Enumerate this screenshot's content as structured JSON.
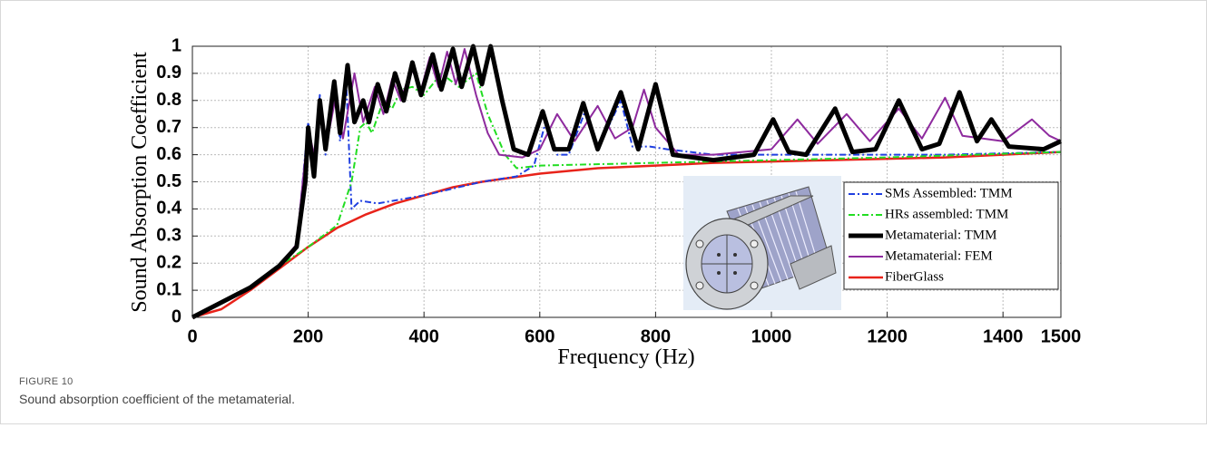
{
  "chart_data": {
    "type": "line",
    "x_label": "Frequency (Hz)",
    "y_label": "Sound Absorption Coefficient",
    "xlim": [
      0,
      1500
    ],
    "ylim": [
      0,
      1
    ],
    "xticks": [
      0,
      200,
      400,
      600,
      800,
      1000,
      1200,
      1400,
      1500
    ],
    "yticks": [
      0,
      0.1,
      0.2,
      0.3,
      0.4,
      0.5,
      0.6,
      0.7,
      0.8,
      0.9,
      1
    ],
    "grid": true,
    "legend_position": "lower right",
    "series": [
      {
        "name": "SMs Assembled: TMM",
        "color": "#1f3fe0",
        "style": "dashdot",
        "line_width": 2,
        "x": [
          0,
          100,
          150,
          180,
          200,
          210,
          220,
          230,
          245,
          255,
          265,
          275,
          290,
          320,
          400,
          500,
          560,
          590,
          610,
          630,
          650,
          680,
          700,
          740,
          760,
          790,
          820,
          900,
          1000,
          1100,
          1200,
          1300,
          1500
        ],
        "values": [
          0,
          0.11,
          0.19,
          0.26,
          0.72,
          0.55,
          0.82,
          0.6,
          0.85,
          0.65,
          0.9,
          0.4,
          0.43,
          0.42,
          0.45,
          0.5,
          0.52,
          0.56,
          0.72,
          0.6,
          0.6,
          0.77,
          0.62,
          0.8,
          0.63,
          0.63,
          0.62,
          0.6,
          0.6,
          0.6,
          0.6,
          0.6,
          0.61
        ]
      },
      {
        "name": "HRs assembled: TMM",
        "color": "#22dd22",
        "style": "dashdot",
        "line_width": 2,
        "x": [
          0,
          100,
          150,
          200,
          250,
          275,
          290,
          300,
          310,
          330,
          345,
          360,
          380,
          400,
          430,
          460,
          490,
          510,
          540,
          560,
          600,
          800,
          1000,
          1200,
          1500
        ],
        "values": [
          0,
          0.11,
          0.19,
          0.26,
          0.34,
          0.5,
          0.7,
          0.72,
          0.68,
          0.8,
          0.77,
          0.84,
          0.85,
          0.82,
          0.9,
          0.85,
          0.9,
          0.75,
          0.6,
          0.55,
          0.56,
          0.57,
          0.58,
          0.59,
          0.61
        ]
      },
      {
        "name": "Metamaterial: TMM",
        "color": "#000000",
        "style": "solid",
        "line_width": 5,
        "x": [
          0,
          100,
          150,
          180,
          195,
          200,
          210,
          220,
          230,
          245,
          255,
          268,
          280,
          295,
          305,
          320,
          335,
          350,
          365,
          380,
          395,
          415,
          430,
          450,
          465,
          485,
          500,
          515,
          535,
          555,
          580,
          605,
          625,
          650,
          675,
          700,
          740,
          770,
          800,
          830,
          900,
          970,
          1003,
          1030,
          1060,
          1110,
          1140,
          1180,
          1220,
          1260,
          1290,
          1325,
          1355,
          1380,
          1410,
          1470,
          1500
        ],
        "values": [
          0,
          0.11,
          0.19,
          0.26,
          0.5,
          0.7,
          0.52,
          0.8,
          0.62,
          0.87,
          0.68,
          0.93,
          0.72,
          0.8,
          0.72,
          0.86,
          0.76,
          0.9,
          0.8,
          0.94,
          0.82,
          0.97,
          0.84,
          0.99,
          0.85,
          1,
          0.86,
          1,
          0.8,
          0.62,
          0.6,
          0.76,
          0.62,
          0.62,
          0.79,
          0.62,
          0.83,
          0.62,
          0.86,
          0.6,
          0.58,
          0.6,
          0.73,
          0.61,
          0.6,
          0.77,
          0.61,
          0.62,
          0.8,
          0.62,
          0.64,
          0.83,
          0.65,
          0.73,
          0.63,
          0.62,
          0.65
        ]
      },
      {
        "name": "Metamaterial: FEM",
        "color": "#8e2a9e",
        "style": "solid",
        "line_width": 2,
        "x": [
          0,
          100,
          150,
          180,
          200,
          210,
          220,
          232,
          248,
          260,
          280,
          295,
          315,
          330,
          345,
          360,
          378,
          395,
          410,
          425,
          440,
          455,
          470,
          490,
          510,
          530,
          570,
          600,
          630,
          660,
          700,
          730,
          760,
          780,
          800,
          840,
          900,
          1000,
          1045,
          1080,
          1130,
          1170,
          1220,
          1260,
          1300,
          1330,
          1400,
          1450,
          1480,
          1500
        ],
        "values": [
          0,
          0.11,
          0.19,
          0.27,
          0.7,
          0.6,
          0.76,
          0.64,
          0.82,
          0.66,
          0.9,
          0.72,
          0.85,
          0.75,
          0.88,
          0.8,
          0.92,
          0.84,
          0.96,
          0.85,
          0.98,
          0.86,
          0.99,
          0.82,
          0.68,
          0.6,
          0.59,
          0.62,
          0.75,
          0.65,
          0.78,
          0.66,
          0.7,
          0.84,
          0.7,
          0.6,
          0.6,
          0.62,
          0.73,
          0.64,
          0.75,
          0.65,
          0.77,
          0.66,
          0.81,
          0.67,
          0.65,
          0.73,
          0.67,
          0.65
        ]
      },
      {
        "name": "FiberGlass",
        "color": "#e8231a",
        "style": "solid",
        "line_width": 2.5,
        "x": [
          0,
          50,
          100,
          150,
          200,
          250,
          300,
          350,
          400,
          450,
          500,
          600,
          700,
          800,
          900,
          1000,
          1100,
          1200,
          1300,
          1400,
          1500
        ],
        "values": [
          0,
          0.03,
          0.1,
          0.18,
          0.26,
          0.33,
          0.38,
          0.42,
          0.45,
          0.48,
          0.5,
          0.53,
          0.55,
          0.56,
          0.57,
          0.575,
          0.58,
          0.585,
          0.59,
          0.6,
          0.61
        ]
      }
    ]
  },
  "figure_label": "FIGURE 10",
  "caption": "Sound absorption coefficient of the metamaterial."
}
